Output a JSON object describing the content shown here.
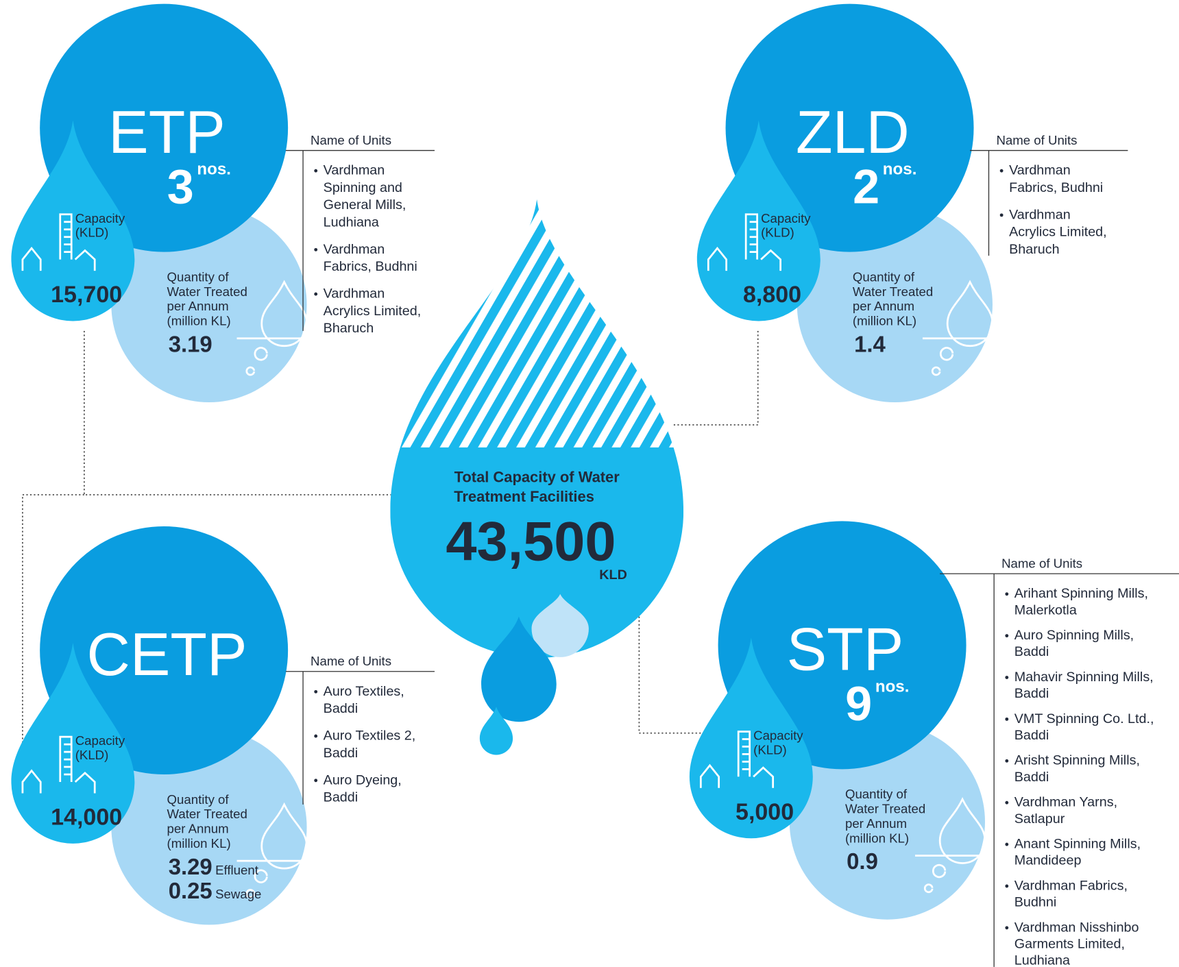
{
  "center": {
    "title": [
      "Total Capacity of Water",
      "Treatment Facilities"
    ],
    "value": "43,500",
    "unit": "KLD"
  },
  "facilities": [
    {
      "name": "ETP",
      "count": "3",
      "count_unit": "nos.",
      "capacity_label": [
        "Capacity",
        "(KLD)"
      ],
      "capacity": "15,700",
      "quantity_label": [
        "Quantity of",
        "Water Treated",
        "per Annum",
        "(million KL)"
      ],
      "quantity": [
        {
          "value": "3.19"
        }
      ],
      "units_heading": "Name of Units",
      "units": [
        [
          "Vardhman",
          "Spinning and",
          "General Mills,",
          "Ludhiana"
        ],
        [
          "Vardhman",
          "Fabrics, Budhni"
        ],
        [
          "Vardhman",
          "Acrylics Limited,",
          "Bharuch"
        ]
      ]
    },
    {
      "name": "ZLD",
      "count": "2",
      "count_unit": "nos.",
      "capacity_label": [
        "Capacity",
        "(KLD)"
      ],
      "capacity": "8,800",
      "quantity_label": [
        "Quantity of",
        "Water Treated",
        "per Annum",
        "(million KL)"
      ],
      "quantity": [
        {
          "value": "1.4"
        }
      ],
      "units_heading": "Name of Units",
      "units": [
        [
          "Vardhman",
          "Fabrics, Budhni"
        ],
        [
          "Vardhman",
          "Acrylics Limited,",
          "Bharuch"
        ]
      ]
    },
    {
      "name": "CETP",
      "capacity_label": [
        "Capacity",
        "(KLD)"
      ],
      "capacity": "14,000",
      "quantity_label": [
        "Quantity of",
        "Water Treated",
        "per Annum",
        "(million KL)"
      ],
      "quantity": [
        {
          "value": "3.29",
          "label": "Effluent"
        },
        {
          "value": "0.25",
          "label": "Sewage"
        }
      ],
      "units_heading": "Name of Units",
      "units": [
        [
          "Auro Textiles,",
          "Baddi"
        ],
        [
          "Auro Textiles 2,",
          "Baddi"
        ],
        [
          "Auro Dyeing,",
          "Baddi"
        ]
      ]
    },
    {
      "name": "STP",
      "count": "9",
      "count_unit": "nos.",
      "capacity_label": [
        "Capacity",
        "(KLD)"
      ],
      "capacity": "5,000",
      "quantity_label": [
        "Quantity of",
        "Water Treated",
        "per Annum",
        "(million KL)"
      ],
      "quantity": [
        {
          "value": "0.9"
        }
      ],
      "units_heading": "Name of Units",
      "units": [
        [
          "Arihant Spinning Mills,",
          "Malerkotla"
        ],
        [
          "Auro Spinning Mills,",
          "Baddi"
        ],
        [
          "Mahavir Spinning Mills,",
          "Baddi"
        ],
        [
          "VMT Spinning Co. Ltd.,",
          "Baddi"
        ],
        [
          "Arisht Spinning Mills,",
          "Baddi"
        ],
        [
          "Vardhman Yarns,",
          "Satlapur"
        ],
        [
          "Anant Spinning Mills,",
          "Mandideep"
        ],
        [
          "Vardhman Fabrics,",
          "Budhni"
        ],
        [
          "Vardhman Nisshinbo",
          "Garments Limited,",
          "Ludhiana"
        ]
      ]
    }
  ]
}
